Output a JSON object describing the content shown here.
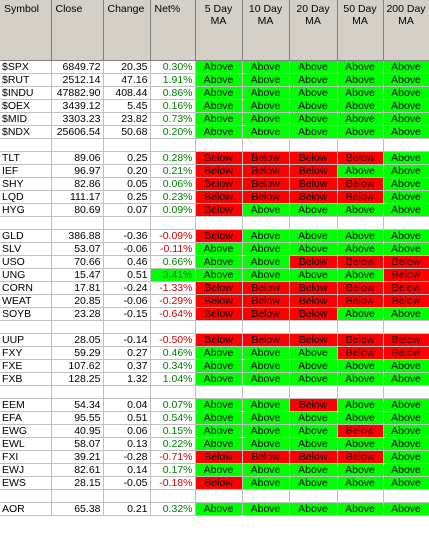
{
  "columns": {
    "symbol": "Symbol",
    "close": "Close",
    "change": "Change",
    "net": "Net%",
    "ma5": [
      "5 Day",
      "MA"
    ],
    "ma10": [
      "10 Day",
      "MA"
    ],
    "ma20": [
      "20 Day",
      "MA"
    ],
    "ma50": [
      "50 Day",
      "MA"
    ],
    "ma200": [
      "200 Day",
      "MA"
    ]
  },
  "colors": {
    "above": "#00ff00",
    "below": "#ff0000",
    "positive": "#008000",
    "negative": "#cc0000"
  },
  "rows": [
    {
      "symbol": "$SPX",
      "close": "6849.72",
      "change": "20.35",
      "net": "0.30%",
      "ma": [
        "Above",
        "Above",
        "Above",
        "Above",
        "Above"
      ]
    },
    {
      "symbol": "$RUT",
      "close": "2512.14",
      "change": "47.16",
      "net": "1.91%",
      "ma": [
        "Above",
        "Above",
        "Above",
        "Above",
        "Above"
      ]
    },
    {
      "symbol": "$INDU",
      "close": "47882.90",
      "change": "408.44",
      "net": "0.86%",
      "ma": [
        "Above",
        "Above",
        "Above",
        "Above",
        "Above"
      ]
    },
    {
      "symbol": "$OEX",
      "close": "3439.12",
      "change": "5.45",
      "net": "0.16%",
      "ma": [
        "Above",
        "Above",
        "Above",
        "Above",
        "Above"
      ]
    },
    {
      "symbol": "$MID",
      "close": "3303.23",
      "change": "23.82",
      "net": "0.73%",
      "ma": [
        "Above",
        "Above",
        "Above",
        "Above",
        "Above"
      ]
    },
    {
      "symbol": "$NDX",
      "close": "25606.54",
      "change": "50.68",
      "net": "0.20%",
      "ma": [
        "Above",
        "Above",
        "Above",
        "Above",
        "Above"
      ]
    },
    null,
    {
      "symbol": "TLT",
      "close": "89.06",
      "change": "0.25",
      "net": "0.28%",
      "ma": [
        "Below",
        "Below",
        "Below",
        "Below",
        "Above"
      ]
    },
    {
      "symbol": "IEF",
      "close": "96.97",
      "change": "0.20",
      "net": "0.21%",
      "ma": [
        "Below",
        "Below",
        "Below",
        "Above",
        "Above"
      ]
    },
    {
      "symbol": "SHY",
      "close": "82.86",
      "change": "0.05",
      "net": "0.06%",
      "ma": [
        "Below",
        "Below",
        "Below",
        "Below",
        "Above"
      ]
    },
    {
      "symbol": "LQD",
      "close": "111.17",
      "change": "0.25",
      "net": "0.23%",
      "ma": [
        "Below",
        "Below",
        "Below",
        "Below",
        "Above"
      ]
    },
    {
      "symbol": "HYG",
      "close": "80.69",
      "change": "0.07",
      "net": "0.09%",
      "ma": [
        "Below",
        "Above",
        "Above",
        "Above",
        "Above"
      ]
    },
    null,
    {
      "symbol": "GLD",
      "close": "386.88",
      "change": "-0.36",
      "net": "-0.09%",
      "ma": [
        "Below",
        "Above",
        "Above",
        "Above",
        "Above"
      ]
    },
    {
      "symbol": "SLV",
      "close": "53.07",
      "change": "-0.06",
      "net": "-0.11%",
      "ma": [
        "Above",
        "Above",
        "Above",
        "Above",
        "Above"
      ]
    },
    {
      "symbol": "USO",
      "close": "70.66",
      "change": "0.46",
      "net": "0.66%",
      "ma": [
        "Above",
        "Above",
        "Below",
        "Below",
        "Below"
      ]
    },
    {
      "symbol": "UNG",
      "close": "15.47",
      "change": "0.51",
      "net": "3.41%",
      "hl": true,
      "ma": [
        "Above",
        "Above",
        "Above",
        "Above",
        "Below"
      ]
    },
    {
      "symbol": "CORN",
      "close": "17.81",
      "change": "-0.24",
      "net": "-1.33%",
      "ma": [
        "Below",
        "Below",
        "Below",
        "Below",
        "Below"
      ]
    },
    {
      "symbol": "WEAT",
      "close": "20.85",
      "change": "-0.06",
      "net": "-0.29%",
      "ma": [
        "Below",
        "Below",
        "Below",
        "Below",
        "Below"
      ]
    },
    {
      "symbol": "SOYB",
      "close": "23.28",
      "change": "-0.15",
      "net": "-0.64%",
      "ma": [
        "Below",
        "Below",
        "Below",
        "Above",
        "Above"
      ]
    },
    null,
    {
      "symbol": "UUP",
      "close": "28.05",
      "change": "-0.14",
      "net": "-0.50%",
      "ma": [
        "Below",
        "Below",
        "Below",
        "Below",
        "Below"
      ]
    },
    {
      "symbol": "FXY",
      "close": "59.29",
      "change": "0.27",
      "net": "0.46%",
      "ma": [
        "Above",
        "Above",
        "Above",
        "Below",
        "Below"
      ]
    },
    {
      "symbol": "FXE",
      "close": "107.62",
      "change": "0.37",
      "net": "0.34%",
      "ma": [
        "Above",
        "Above",
        "Above",
        "Above",
        "Above"
      ]
    },
    {
      "symbol": "FXB",
      "close": "128.25",
      "change": "1.32",
      "net": "1.04%",
      "ma": [
        "Above",
        "Above",
        "Above",
        "Above",
        "Above"
      ]
    },
    null,
    {
      "symbol": "EEM",
      "close": "54.34",
      "change": "0.04",
      "net": "0.07%",
      "ma": [
        "Above",
        "Above",
        "Below",
        "Above",
        "Above"
      ]
    },
    {
      "symbol": "EFA",
      "close": "95.55",
      "change": "0.51",
      "net": "0.54%",
      "ma": [
        "Above",
        "Above",
        "Above",
        "Above",
        "Above"
      ]
    },
    {
      "symbol": "EWG",
      "close": "40.95",
      "change": "0.06",
      "net": "0.15%",
      "ma": [
        "Above",
        "Above",
        "Above",
        "Below",
        "Above"
      ]
    },
    {
      "symbol": "EWL",
      "close": "58.07",
      "change": "0.13",
      "net": "0.22%",
      "ma": [
        "Above",
        "Above",
        "Above",
        "Above",
        "Above"
      ]
    },
    {
      "symbol": "FXI",
      "close": "39.21",
      "change": "-0.28",
      "net": "-0.71%",
      "ma": [
        "Below",
        "Below",
        "Below",
        "Below",
        "Above"
      ]
    },
    {
      "symbol": "EWJ",
      "close": "82.61",
      "change": "0.14",
      "net": "0.17%",
      "ma": [
        "Above",
        "Above",
        "Above",
        "Above",
        "Above"
      ]
    },
    {
      "symbol": "EWS",
      "close": "28.15",
      "change": "-0.05",
      "net": "-0.18%",
      "ma": [
        "Below",
        "Above",
        "Above",
        "Above",
        "Above"
      ]
    },
    null,
    {
      "symbol": "AOR",
      "close": "65.38",
      "change": "0.21",
      "net": "0.32%",
      "ma": [
        "Above",
        "Above",
        "Above",
        "Above",
        "Above"
      ]
    }
  ]
}
